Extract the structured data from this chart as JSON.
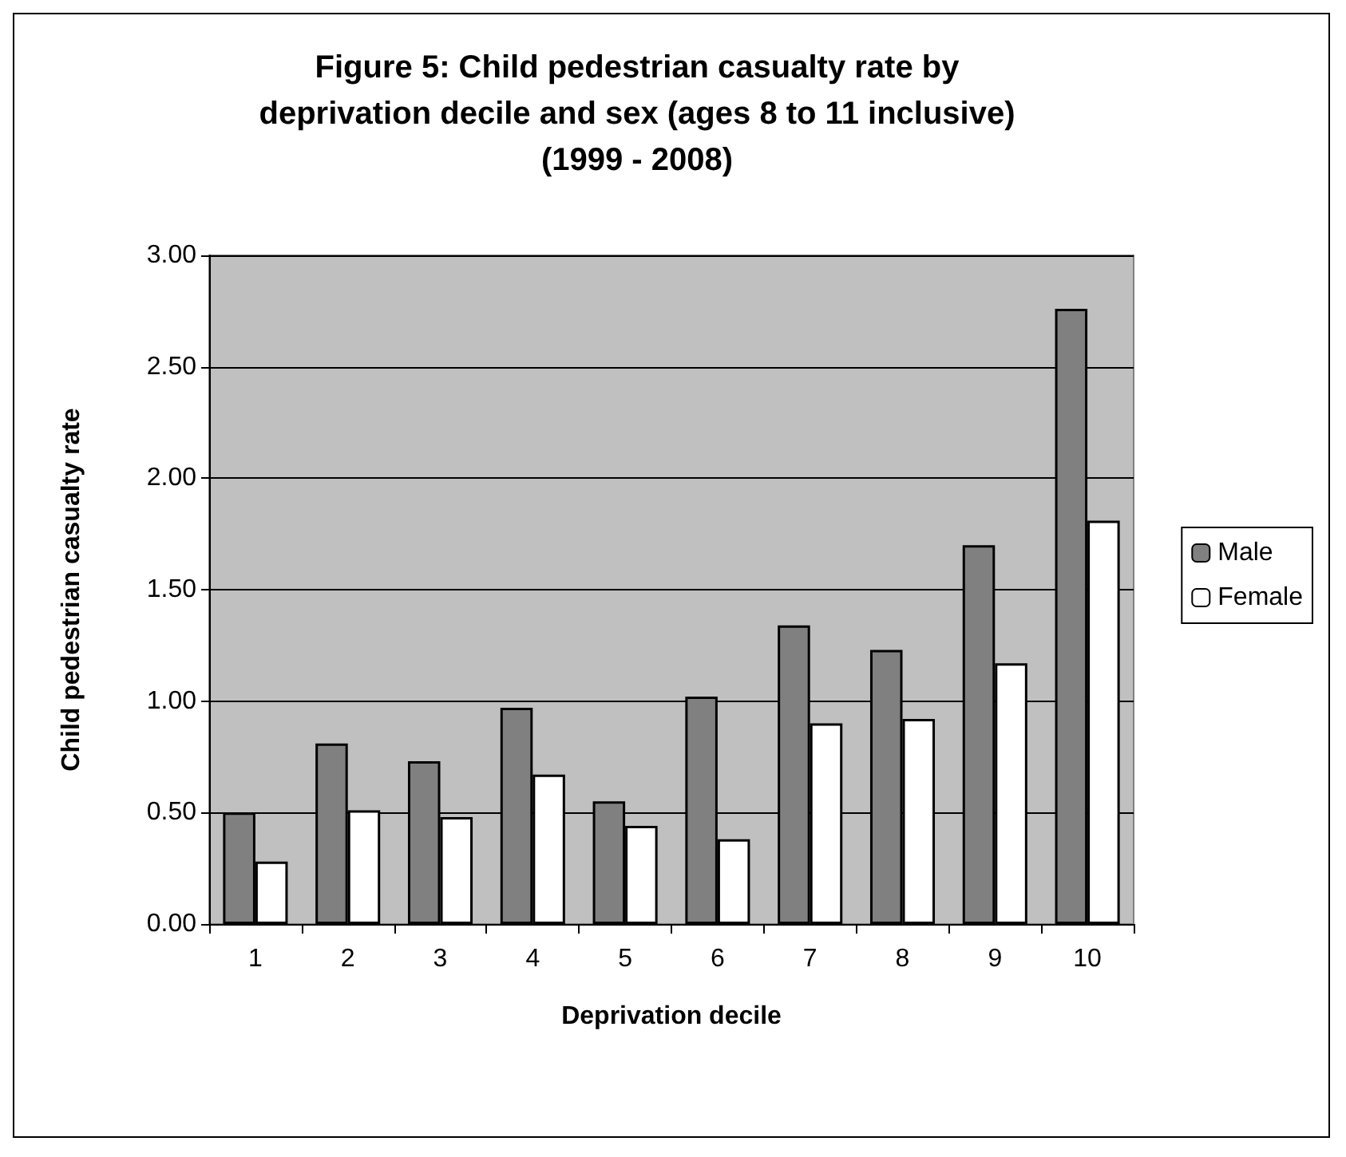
{
  "chart_data": {
    "type": "bar",
    "title": "Figure 5: Child pedestrian casualty rate by\ndeprivation decile and sex (ages 8 to 11 inclusive)\n(1999 - 2008)",
    "xlabel": "Deprivation decile",
    "ylabel": "Child pedestrian casualty rate",
    "categories": [
      "1",
      "2",
      "3",
      "4",
      "5",
      "6",
      "7",
      "8",
      "9",
      "10"
    ],
    "series": [
      {
        "name": "Male",
        "color": "#808080",
        "values": [
          0.5,
          0.81,
          0.73,
          0.97,
          0.55,
          1.02,
          1.34,
          1.23,
          1.7,
          2.76
        ]
      },
      {
        "name": "Female",
        "color": "#ffffff",
        "values": [
          0.28,
          0.51,
          0.48,
          0.67,
          0.44,
          0.38,
          0.9,
          0.92,
          1.17,
          1.81
        ]
      }
    ],
    "ylim": [
      0,
      3
    ],
    "yticks": [
      {
        "value": 0,
        "label": "0.00"
      },
      {
        "value": 0.5,
        "label": "0.50"
      },
      {
        "value": 1,
        "label": "1.00"
      },
      {
        "value": 1.5,
        "label": "1.50"
      },
      {
        "value": 2,
        "label": "2.00"
      },
      {
        "value": 2.5,
        "label": "2.50"
      },
      {
        "value": 3,
        "label": "3.00"
      }
    ],
    "grid": "y",
    "legend": "right"
  }
}
